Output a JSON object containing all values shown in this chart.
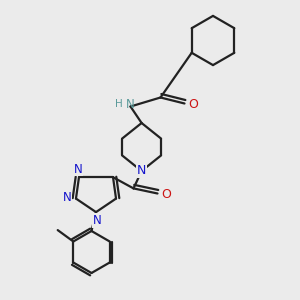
{
  "background_color": "#ebebeb",
  "bond_color": "#222222",
  "nitrogen_color": "#1414cc",
  "oxygen_color": "#cc1414",
  "hn_color": "#5a9a9a",
  "figsize": [
    3.0,
    3.0
  ],
  "dpi": 100,
  "xlim": [
    0,
    10
  ],
  "ylim": [
    0,
    10
  ]
}
